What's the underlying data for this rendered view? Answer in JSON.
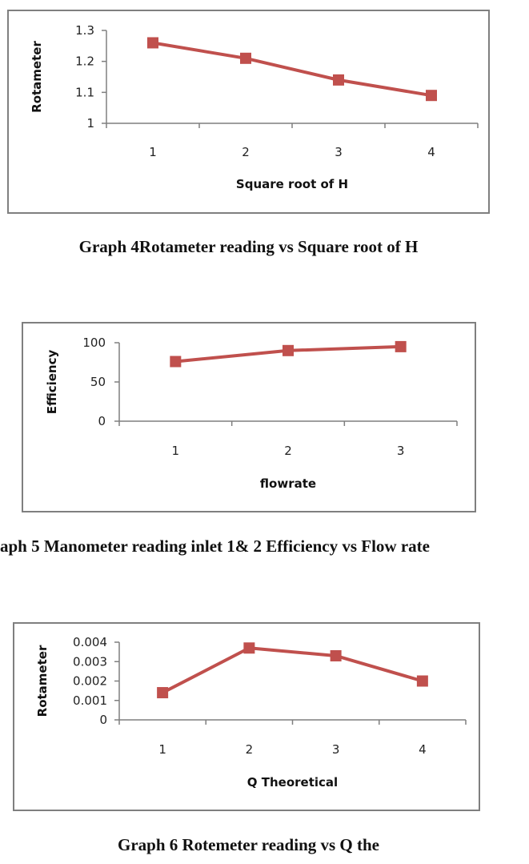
{
  "colors": {
    "series": "#c0504d",
    "axis": "#7f7f7f",
    "frame": "#7f7f7f"
  },
  "captions": [
    "Graph 4Rotameter reading vs Square root of H",
    "aph 5 Manometer reading inlet 1& 2 Efficiency  vs  Flow rate",
    "Graph 6 Rotemeter reading vs Q the"
  ],
  "chart_data": [
    {
      "type": "line",
      "categories": [
        "1",
        "2",
        "3",
        "4"
      ],
      "values": [
        1.26,
        1.21,
        1.14,
        1.09
      ],
      "xlabel": "Square root of H",
      "ylabel": "Rotameter",
      "ylim": [
        1,
        1.3
      ],
      "yticks": [
        "1",
        "1.1",
        "1.2",
        "1.3"
      ],
      "marker": "square",
      "grid": false,
      "legend": "none"
    },
    {
      "type": "line",
      "categories": [
        "1",
        "2",
        "3"
      ],
      "values": [
        76,
        90,
        95
      ],
      "xlabel": "flowrate",
      "ylabel": "Efficiency",
      "ylim": [
        0,
        100
      ],
      "yticks": [
        "0",
        "50",
        "100"
      ],
      "marker": "square",
      "grid": false,
      "legend": "none"
    },
    {
      "type": "line",
      "categories": [
        "1",
        "2",
        "3",
        "4"
      ],
      "values": [
        0.0014,
        0.0037,
        0.0033,
        0.002
      ],
      "xlabel": "Q Theoretical",
      "ylabel": "Rotameter",
      "ylim": [
        0,
        0.004
      ],
      "yticks": [
        "0",
        "0.001",
        "0.002",
        "0.003",
        "0.004"
      ],
      "marker": "square",
      "grid": false,
      "legend": "none"
    }
  ]
}
